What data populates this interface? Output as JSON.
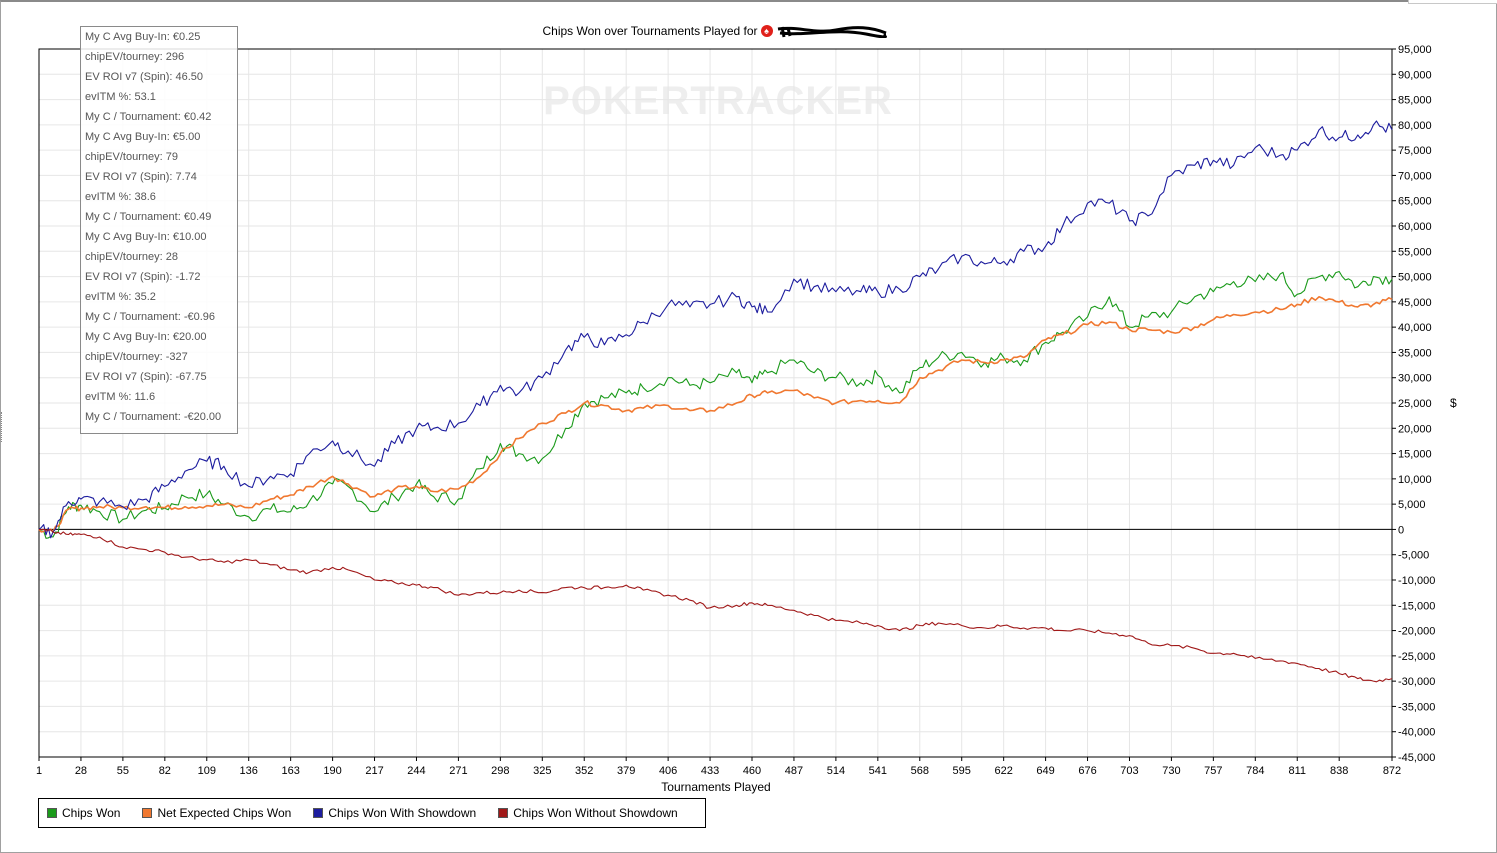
{
  "chart_data": {
    "type": "line",
    "title": "Chips Won over Tournaments Played for",
    "watermark": "POKERTRACKER",
    "xlabel": "Tournaments Played",
    "ylabel": "$",
    "xlim": [
      1,
      872
    ],
    "ylim": [
      -45000,
      95000
    ],
    "x_ticks": [
      "1",
      "28",
      "55",
      "82",
      "109",
      "136",
      "163",
      "190",
      "217",
      "244",
      "271",
      "298",
      "325",
      "352",
      "379",
      "406",
      "433",
      "460",
      "487",
      "514",
      "541",
      "568",
      "595",
      "622",
      "649",
      "676",
      "703",
      "730",
      "757",
      "784",
      "811",
      "838",
      "872"
    ],
    "y_ticks": [
      "95,000",
      "90,000",
      "85,000",
      "80,000",
      "75,000",
      "70,000",
      "65,000",
      "60,000",
      "55,000",
      "50,000",
      "45,000",
      "40,000",
      "35,000",
      "30,000",
      "25,000",
      "20,000",
      "15,000",
      "10,000",
      "5,000",
      "0",
      "-5,000",
      "-10,000",
      "-15,000",
      "-20,000",
      "-25,000",
      "-30,000",
      "-35,000",
      "-40,000",
      "-45,000"
    ],
    "grid": true,
    "legend_position": "bottom-left",
    "series": [
      {
        "name": "Chips Won",
        "color": "#1a9a1a",
        "points": [
          [
            1,
            0
          ],
          [
            10,
            -1500
          ],
          [
            20,
            4500
          ],
          [
            28,
            4800
          ],
          [
            40,
            3500
          ],
          [
            55,
            2000
          ],
          [
            70,
            3800
          ],
          [
            82,
            4200
          ],
          [
            95,
            6500
          ],
          [
            109,
            7000
          ],
          [
            120,
            5000
          ],
          [
            136,
            2500
          ],
          [
            150,
            4000
          ],
          [
            163,
            3500
          ],
          [
            175,
            5500
          ],
          [
            190,
            9000
          ],
          [
            200,
            8500
          ],
          [
            217,
            3500
          ],
          [
            230,
            6500
          ],
          [
            244,
            9000
          ],
          [
            255,
            6500
          ],
          [
            271,
            6000
          ],
          [
            285,
            12000
          ],
          [
            298,
            17000
          ],
          [
            310,
            15000
          ],
          [
            325,
            14000
          ],
          [
            340,
            20000
          ],
          [
            352,
            25000
          ],
          [
            365,
            26000
          ],
          [
            379,
            27000
          ],
          [
            390,
            28000
          ],
          [
            406,
            30000
          ],
          [
            420,
            28500
          ],
          [
            433,
            29000
          ],
          [
            450,
            31000
          ],
          [
            460,
            29000
          ],
          [
            470,
            31000
          ],
          [
            487,
            33500
          ],
          [
            500,
            31000
          ],
          [
            514,
            30000
          ],
          [
            530,
            29000
          ],
          [
            541,
            30500
          ],
          [
            555,
            27000
          ],
          [
            568,
            32000
          ],
          [
            580,
            34000
          ],
          [
            595,
            35000
          ],
          [
            610,
            33000
          ],
          [
            622,
            34000
          ],
          [
            635,
            33500
          ],
          [
            649,
            37000
          ],
          [
            660,
            39000
          ],
          [
            676,
            42000
          ],
          [
            690,
            46000
          ],
          [
            703,
            40000
          ],
          [
            715,
            42000
          ],
          [
            730,
            43000
          ],
          [
            745,
            46000
          ],
          [
            757,
            47000
          ],
          [
            770,
            49000
          ],
          [
            784,
            49000
          ],
          [
            800,
            50500
          ],
          [
            811,
            46500
          ],
          [
            825,
            50000
          ],
          [
            838,
            51000
          ],
          [
            850,
            48000
          ],
          [
            860,
            50000
          ],
          [
            872,
            49500
          ]
        ]
      },
      {
        "name": "Net Expected Chips Won",
        "color": "#f07830",
        "points": [
          [
            1,
            0
          ],
          [
            10,
            -500
          ],
          [
            20,
            4000
          ],
          [
            28,
            4200
          ],
          [
            40,
            4500
          ],
          [
            55,
            4300
          ],
          [
            70,
            4500
          ],
          [
            82,
            4300
          ],
          [
            95,
            4500
          ],
          [
            109,
            4700
          ],
          [
            120,
            4900
          ],
          [
            136,
            4300
          ],
          [
            150,
            6000
          ],
          [
            163,
            6800
          ],
          [
            175,
            8500
          ],
          [
            190,
            10500
          ],
          [
            200,
            9000
          ],
          [
            217,
            6500
          ],
          [
            230,
            8000
          ],
          [
            244,
            8500
          ],
          [
            255,
            7500
          ],
          [
            271,
            8000
          ],
          [
            285,
            10500
          ],
          [
            298,
            15000
          ],
          [
            310,
            18000
          ],
          [
            325,
            21000
          ],
          [
            340,
            23000
          ],
          [
            352,
            25000
          ],
          [
            365,
            24500
          ],
          [
            379,
            23500
          ],
          [
            390,
            24000
          ],
          [
            406,
            24500
          ],
          [
            420,
            23500
          ],
          [
            433,
            23500
          ],
          [
            450,
            25000
          ],
          [
            460,
            26500
          ],
          [
            470,
            27000
          ],
          [
            487,
            27500
          ],
          [
            500,
            26000
          ],
          [
            514,
            25000
          ],
          [
            530,
            25500
          ],
          [
            541,
            25500
          ],
          [
            555,
            25000
          ],
          [
            568,
            30000
          ],
          [
            580,
            31500
          ],
          [
            595,
            33500
          ],
          [
            610,
            33000
          ],
          [
            622,
            33500
          ],
          [
            635,
            34000
          ],
          [
            649,
            37500
          ],
          [
            660,
            38500
          ],
          [
            676,
            40500
          ],
          [
            690,
            41000
          ],
          [
            703,
            39500
          ],
          [
            715,
            39500
          ],
          [
            730,
            39000
          ],
          [
            745,
            40000
          ],
          [
            757,
            41500
          ],
          [
            770,
            42500
          ],
          [
            784,
            43000
          ],
          [
            800,
            43500
          ],
          [
            811,
            44500
          ],
          [
            825,
            46000
          ],
          [
            838,
            45000
          ],
          [
            850,
            44000
          ],
          [
            860,
            44500
          ],
          [
            872,
            45500
          ]
        ]
      },
      {
        "name": "Chips Won With Showdown",
        "color": "#1c1c9e",
        "points": [
          [
            1,
            0
          ],
          [
            10,
            -500
          ],
          [
            20,
            5500
          ],
          [
            28,
            6000
          ],
          [
            40,
            5500
          ],
          [
            55,
            4500
          ],
          [
            70,
            6000
          ],
          [
            82,
            8500
          ],
          [
            95,
            11500
          ],
          [
            109,
            13500
          ],
          [
            120,
            12500
          ],
          [
            136,
            8500
          ],
          [
            150,
            10500
          ],
          [
            163,
            11000
          ],
          [
            175,
            15000
          ],
          [
            190,
            17500
          ],
          [
            200,
            15500
          ],
          [
            217,
            12500
          ],
          [
            230,
            17000
          ],
          [
            244,
            20000
          ],
          [
            255,
            20000
          ],
          [
            271,
            21000
          ],
          [
            285,
            24500
          ],
          [
            298,
            28500
          ],
          [
            310,
            27000
          ],
          [
            325,
            30000
          ],
          [
            340,
            35500
          ],
          [
            352,
            38000
          ],
          [
            365,
            36500
          ],
          [
            379,
            38500
          ],
          [
            390,
            41000
          ],
          [
            406,
            44500
          ],
          [
            420,
            44000
          ],
          [
            433,
            44500
          ],
          [
            450,
            46000
          ],
          [
            460,
            44000
          ],
          [
            470,
            43000
          ],
          [
            487,
            49500
          ],
          [
            500,
            48000
          ],
          [
            514,
            47000
          ],
          [
            530,
            47000
          ],
          [
            541,
            47000
          ],
          [
            555,
            47500
          ],
          [
            568,
            50000
          ],
          [
            580,
            51500
          ],
          [
            595,
            54000
          ],
          [
            610,
            52500
          ],
          [
            622,
            53000
          ],
          [
            635,
            55000
          ],
          [
            649,
            56000
          ],
          [
            660,
            60000
          ],
          [
            676,
            64500
          ],
          [
            690,
            64500
          ],
          [
            703,
            61000
          ],
          [
            715,
            62000
          ],
          [
            730,
            70000
          ],
          [
            745,
            72000
          ],
          [
            757,
            73000
          ],
          [
            770,
            72000
          ],
          [
            784,
            75500
          ],
          [
            800,
            74000
          ],
          [
            811,
            75000
          ],
          [
            825,
            79000
          ],
          [
            838,
            77500
          ],
          [
            850,
            78000
          ],
          [
            860,
            80000
          ],
          [
            872,
            79000
          ]
        ]
      },
      {
        "name": "Chips Won Without Showdown",
        "color": "#a01818",
        "points": [
          [
            1,
            0
          ],
          [
            10,
            -500
          ],
          [
            20,
            -1000
          ],
          [
            28,
            -1000
          ],
          [
            40,
            -1500
          ],
          [
            55,
            -3500
          ],
          [
            70,
            -4000
          ],
          [
            82,
            -4500
          ],
          [
            95,
            -5500
          ],
          [
            109,
            -6000
          ],
          [
            120,
            -6500
          ],
          [
            136,
            -6000
          ],
          [
            150,
            -7000
          ],
          [
            163,
            -8000
          ],
          [
            175,
            -8500
          ],
          [
            190,
            -7500
          ],
          [
            200,
            -8000
          ],
          [
            217,
            -10000
          ],
          [
            230,
            -10500
          ],
          [
            244,
            -11000
          ],
          [
            255,
            -11500
          ],
          [
            271,
            -13000
          ],
          [
            285,
            -12500
          ],
          [
            298,
            -12500
          ],
          [
            310,
            -12000
          ],
          [
            325,
            -12500
          ],
          [
            340,
            -11500
          ],
          [
            352,
            -11500
          ],
          [
            365,
            -11500
          ],
          [
            379,
            -11000
          ],
          [
            390,
            -12000
          ],
          [
            406,
            -13000
          ],
          [
            420,
            -14000
          ],
          [
            433,
            -15500
          ],
          [
            450,
            -15000
          ],
          [
            460,
            -14500
          ],
          [
            470,
            -15000
          ],
          [
            487,
            -16000
          ],
          [
            500,
            -17000
          ],
          [
            514,
            -18000
          ],
          [
            530,
            -18500
          ],
          [
            541,
            -19000
          ],
          [
            555,
            -20000
          ],
          [
            568,
            -19000
          ],
          [
            580,
            -18500
          ],
          [
            595,
            -19000
          ],
          [
            610,
            -19500
          ],
          [
            622,
            -19000
          ],
          [
            635,
            -19500
          ],
          [
            649,
            -19500
          ],
          [
            660,
            -20000
          ],
          [
            676,
            -20000
          ],
          [
            690,
            -20500
          ],
          [
            703,
            -21000
          ],
          [
            715,
            -22500
          ],
          [
            730,
            -23000
          ],
          [
            745,
            -23500
          ],
          [
            757,
            -24500
          ],
          [
            770,
            -24500
          ],
          [
            784,
            -25500
          ],
          [
            800,
            -26000
          ],
          [
            811,
            -26500
          ],
          [
            825,
            -27500
          ],
          [
            838,
            -28500
          ],
          [
            850,
            -29500
          ],
          [
            860,
            -30000
          ],
          [
            872,
            -29500
          ]
        ]
      }
    ]
  },
  "info_box": {
    "lines": [
      "My C Avg Buy-In: €0.25",
      "chipEV/tourney: 296",
      "EV ROI v7 (Spin): 46.50",
      "evITM %: 53.1",
      "My C / Tournament: €0.42",
      "My C Avg Buy-In: €5.00",
      "chipEV/tourney: 79",
      "EV ROI v7 (Spin): 7.74",
      "evITM %: 38.6",
      "My C / Tournament: €0.49",
      "My C Avg Buy-In: €10.00",
      "chipEV/tourney: 28",
      "EV ROI v7 (Spin): -1.72",
      "evITM %: 35.2",
      "My C / Tournament: -€0.96",
      "My C Avg Buy-In: €20.00",
      "chipEV/tourney: -327",
      "EV ROI v7 (Spin): -67.75",
      "evITM %: 11.6",
      "My C / Tournament: -€20.00"
    ]
  },
  "icons": {
    "title_logo": "pokerstars-spade-icon",
    "redaction": "redacted-player-name"
  }
}
